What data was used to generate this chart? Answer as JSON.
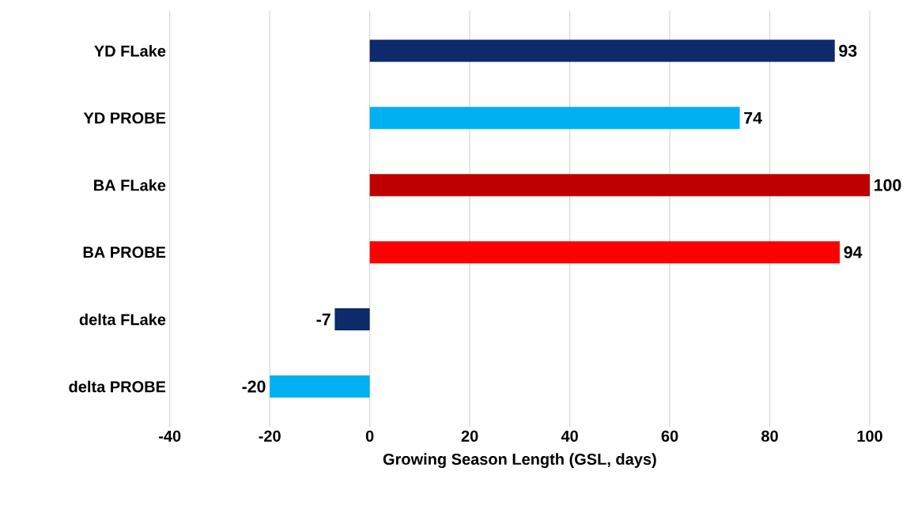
{
  "chart_data": {
    "type": "bar",
    "orientation": "horizontal",
    "xlabel": "Growing Season Length (GSL, days)",
    "categories": [
      "YD FLake",
      "YD PROBE",
      "BA FLake",
      "BA PROBE",
      "delta FLake",
      "delta PROBE"
    ],
    "values": [
      93,
      74,
      100,
      94,
      -7,
      -20
    ],
    "colors": [
      "#0d2a6b",
      "#00b0f0",
      "#c00000",
      "#ff0000",
      "#0d2a6b",
      "#00b0f0"
    ],
    "xlim": [
      -40,
      100
    ],
    "xticks": [
      -40,
      -20,
      0,
      20,
      40,
      60,
      80,
      100
    ],
    "grid": "x",
    "data_labels": true
  }
}
